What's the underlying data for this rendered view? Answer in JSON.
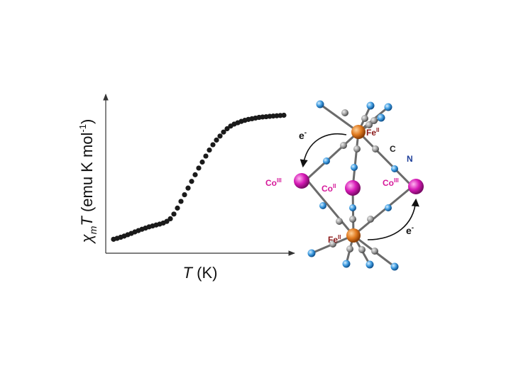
{
  "chart_data": {
    "type": "scatter",
    "xlabel": "T (K)",
    "ylabel": "χmT (emu K mol-1)",
    "ylabel_parts": {
      "chi": "χ",
      "sub": "m",
      "T": "T",
      "rest": " (emu K mol",
      "sup": "-1",
      "close": ")"
    },
    "xlabel_parts": {
      "T": "T",
      "rest": " (K)"
    },
    "xlim": [
      0,
      100
    ],
    "ylim": [
      0,
      100
    ],
    "grid": false,
    "series": [
      {
        "x": [
          2,
          4,
          6,
          8,
          10,
          12,
          14,
          16,
          18,
          20,
          22,
          24,
          26,
          28,
          30,
          32,
          34,
          36,
          38,
          40,
          42,
          44,
          46,
          48,
          50,
          52,
          54,
          56,
          58,
          60,
          62,
          64,
          66,
          68,
          70,
          72,
          74,
          76,
          78,
          80,
          82,
          84,
          86,
          88,
          90,
          92,
          94,
          96,
          98
        ],
        "y": [
          4.6,
          5.3,
          6.1,
          7.0,
          8.0,
          9.0,
          10.1,
          11.1,
          12.1,
          13.0,
          13.9,
          14.6,
          15.3,
          16.0,
          16.8,
          18.0,
          20.0,
          23.5,
          28.0,
          33.0,
          38.0,
          43.0,
          48.0,
          53.0,
          58.0,
          62.5,
          67.0,
          71.5,
          75.5,
          79.0,
          82.0,
          85.0,
          87.5,
          89.5,
          91.0,
          92.0,
          93.0,
          93.8,
          94.5,
          95.0,
          95.5,
          96.0,
          96.3,
          96.5,
          96.8,
          97.0,
          97.2,
          97.4,
          97.6
        ]
      }
    ]
  },
  "diagram": {
    "labels": {
      "fe_top": {
        "base": "Fe",
        "sup": "II"
      },
      "fe_bottom": {
        "base": "Fe",
        "sup": "II"
      },
      "co_left": {
        "base": "Co",
        "sup": "III"
      },
      "co_center": {
        "base": "Co",
        "sup": "II"
      },
      "co_right": {
        "base": "Co",
        "sup": "III"
      },
      "carbon": "C",
      "nitrogen": "N",
      "electron_top": {
        "base": "e",
        "sup": "-"
      },
      "electron_bottom": {
        "base": "e",
        "sup": "-"
      }
    },
    "colors": {
      "iron": "#e07a1f",
      "cobalt": "#d61ab6",
      "carbon": "#9a9a9a",
      "nitrogen": "#3d9be0",
      "bond": "#6b6b6b"
    }
  }
}
